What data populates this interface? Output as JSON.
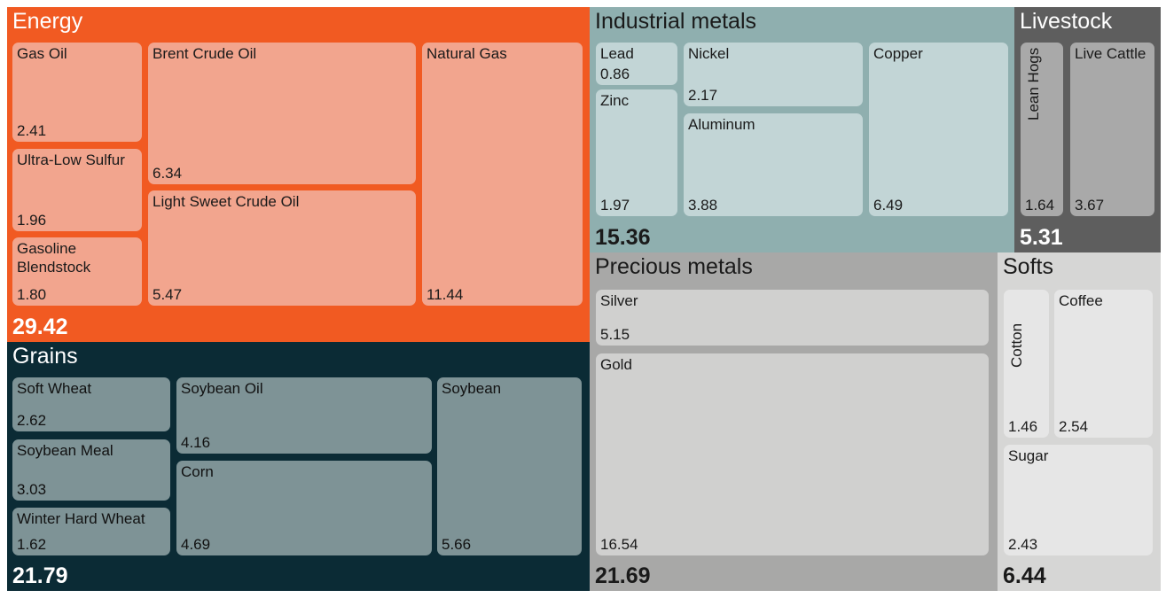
{
  "chart_data": {
    "type": "treemap",
    "groups": [
      {
        "name": "Energy",
        "total": "29.42",
        "color": "#F15A22",
        "tile_color": "#F2A58E",
        "text_color": "#ffffff",
        "tile_text_color": "#1a1a1a",
        "items": [
          {
            "label": "Gas Oil",
            "value": "2.41"
          },
          {
            "label": "Ultra-Low Sulfur",
            "value": "1.96"
          },
          {
            "label": "Gasoline Blendstock",
            "value": "1.80"
          },
          {
            "label": "Brent Crude Oil",
            "value": "6.34"
          },
          {
            "label": "Light Sweet Crude Oil",
            "value": "5.47"
          },
          {
            "label": "Natural Gas",
            "value": "11.44"
          }
        ]
      },
      {
        "name": "Industrial metals",
        "total": "15.36",
        "color": "#8FAFAF",
        "tile_color": "#C2D5D6",
        "text_color": "#1a1a1a",
        "tile_text_color": "#1a1a1a",
        "items": [
          {
            "label": "Lead",
            "value": "0.86"
          },
          {
            "label": "Zinc",
            "value": "1.97"
          },
          {
            "label": "Nickel",
            "value": "2.17"
          },
          {
            "label": "Aluminum",
            "value": "3.88"
          },
          {
            "label": "Copper",
            "value": "6.49"
          }
        ]
      },
      {
        "name": "Livestock",
        "total": "5.31",
        "color": "#5E5E5E",
        "tile_color": "#A9A9A9",
        "text_color": "#ffffff",
        "tile_text_color": "#1a1a1a",
        "items": [
          {
            "label": "Lean Hogs",
            "value": "1.64",
            "vertical": true
          },
          {
            "label": "Live Cattle",
            "value": "3.67"
          }
        ]
      },
      {
        "name": "Grains",
        "total": "21.79",
        "color": "#0B2B35",
        "tile_color": "#7E9396",
        "text_color": "#ffffff",
        "tile_text_color": "#111111",
        "items": [
          {
            "label": "Soft Wheat",
            "value": "2.62"
          },
          {
            "label": "Soybean Meal",
            "value": "3.03"
          },
          {
            "label": "Winter Hard Wheat",
            "value": "1.62"
          },
          {
            "label": "Soybean Oil",
            "value": "4.16"
          },
          {
            "label": "Corn",
            "value": "4.69"
          },
          {
            "label": "Soybean",
            "value": "5.66"
          }
        ]
      },
      {
        "name": "Precious metals",
        "total": "21.69",
        "color": "#A8A8A7",
        "tile_color": "#D0D0CF",
        "text_color": "#1a1a1a",
        "tile_text_color": "#1a1a1a",
        "items": [
          {
            "label": "Silver",
            "value": "5.15"
          },
          {
            "label": "Gold",
            "value": "16.54"
          }
        ]
      },
      {
        "name": "Softs",
        "total": "6.44",
        "color": "#D6D6D5",
        "tile_color": "#E6E6E6",
        "text_color": "#1a1a1a",
        "tile_text_color": "#1a1a1a",
        "items": [
          {
            "label": "Cotton",
            "value": "1.46",
            "vertical": true
          },
          {
            "label": "Coffee",
            "value": "2.54"
          },
          {
            "label": "Sugar",
            "value": "2.43"
          }
        ]
      }
    ]
  }
}
